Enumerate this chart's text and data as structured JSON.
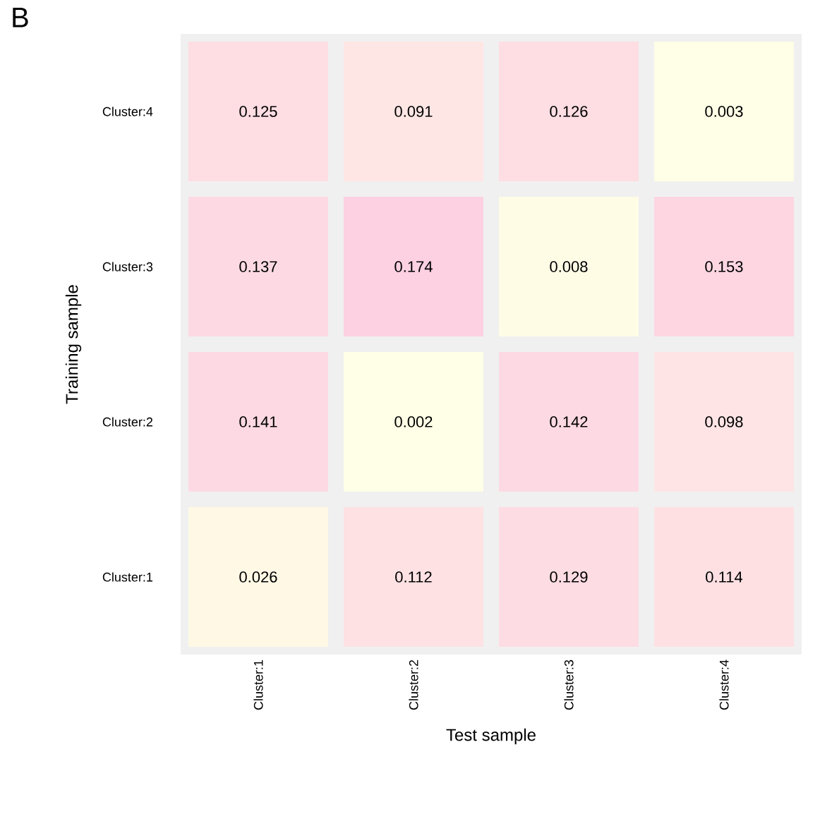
{
  "chart_data": {
    "type": "heatmap",
    "xlabel": "Test sample",
    "ylabel": "Training sample",
    "annotations": [
      "B"
    ],
    "categories": [
      "Cluster:1",
      "Cluster:2",
      "Cluster:3",
      "Cluster:4"
    ],
    "y_categories": [
      "Cluster:4",
      "Cluster:3",
      "Cluster:2",
      "Cluster:1"
    ],
    "cells": [
      [
        0.125,
        0.091,
        0.126,
        0.003
      ],
      [
        0.137,
        0.174,
        0.008,
        0.153
      ],
      [
        0.141,
        0.002,
        0.142,
        0.098
      ],
      [
        0.026,
        0.112,
        0.129,
        0.114
      ]
    ],
    "data_labels": true
  }
}
